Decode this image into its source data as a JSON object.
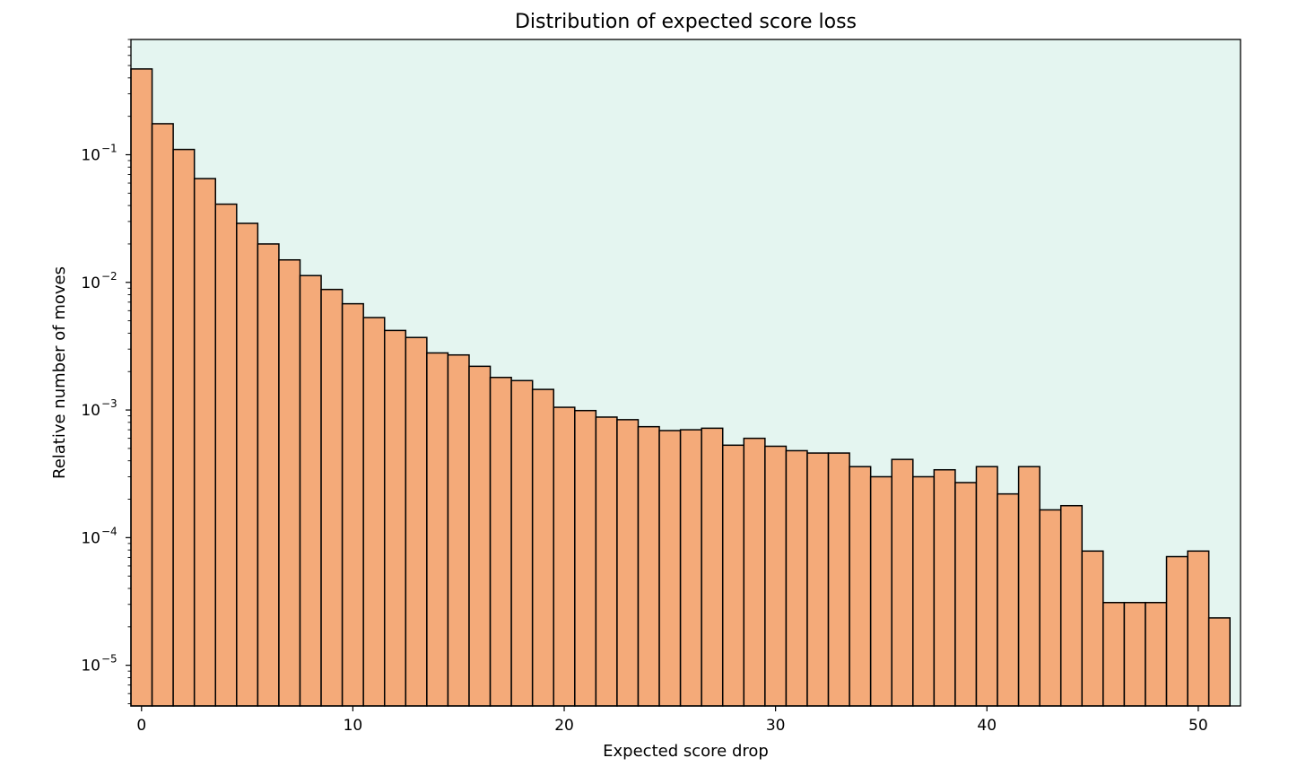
{
  "chart_data": {
    "type": "bar",
    "title": "Distribution of expected score loss",
    "xlabel": "Expected score drop",
    "ylabel": "Relative number of moves",
    "x_scale": "linear",
    "y_scale": "log",
    "xlim": [
      -0.5,
      52
    ],
    "ylim": [
      4.8e-06,
      0.8
    ],
    "bin_width": 1,
    "bin_starts": [
      -0.5,
      0.5,
      1.5,
      2.5,
      3.5,
      4.5,
      5.5,
      6.5,
      7.5,
      8.5,
      9.5,
      10.5,
      11.5,
      12.5,
      13.5,
      14.5,
      15.5,
      16.5,
      17.5,
      18.5,
      19.5,
      20.5,
      21.5,
      22.5,
      23.5,
      24.5,
      25.5,
      26.5,
      27.5,
      28.5,
      29.5,
      30.5,
      31.5,
      32.5,
      33.5,
      34.5,
      35.5,
      36.5,
      37.5,
      38.5,
      39.5,
      40.5,
      41.5,
      42.5,
      43.5,
      44.5,
      45.5,
      46.5,
      47.5,
      48.5,
      49.5,
      50.5
    ],
    "values": [
      0.47,
      0.175,
      0.11,
      0.065,
      0.041,
      0.029,
      0.02,
      0.015,
      0.0113,
      0.0088,
      0.0068,
      0.0053,
      0.0042,
      0.0037,
      0.0028,
      0.0027,
      0.0022,
      0.0018,
      0.0017,
      0.00145,
      0.00105,
      0.00099,
      0.00088,
      0.00084,
      0.00074,
      0.00069,
      0.0007,
      0.00072,
      0.00053,
      0.0006,
      0.00052,
      0.00048,
      0.00046,
      0.00046,
      0.00036,
      0.0003,
      0.00041,
      0.0003,
      0.00034,
      0.00027,
      0.00036,
      0.00022,
      0.00036,
      0.000165,
      0.000178,
      7.85e-05,
      3.1e-05,
      3.1e-05,
      3.1e-05,
      7.1e-05,
      7.85e-05,
      2.35e-05
    ],
    "x_ticks": [
      {
        "value": 0,
        "label": "0"
      },
      {
        "value": 10,
        "label": "10"
      },
      {
        "value": 20,
        "label": "20"
      },
      {
        "value": 30,
        "label": "30"
      },
      {
        "value": 40,
        "label": "40"
      },
      {
        "value": 50,
        "label": "50"
      }
    ],
    "y_ticks": [
      {
        "value": 1e-05,
        "base": "10",
        "exp": "−5"
      },
      {
        "value": 0.0001,
        "base": "10",
        "exp": "−4"
      },
      {
        "value": 0.001,
        "base": "10",
        "exp": "−3"
      },
      {
        "value": 0.01,
        "base": "10",
        "exp": "−2"
      },
      {
        "value": 0.1,
        "base": "10",
        "exp": "−1"
      }
    ],
    "grid": false,
    "legend": "none",
    "colors": {
      "plot_background": "#e4f5f0",
      "bar_fill": "#f4aa79",
      "bar_edge": "#000000",
      "text": "#000000"
    }
  }
}
